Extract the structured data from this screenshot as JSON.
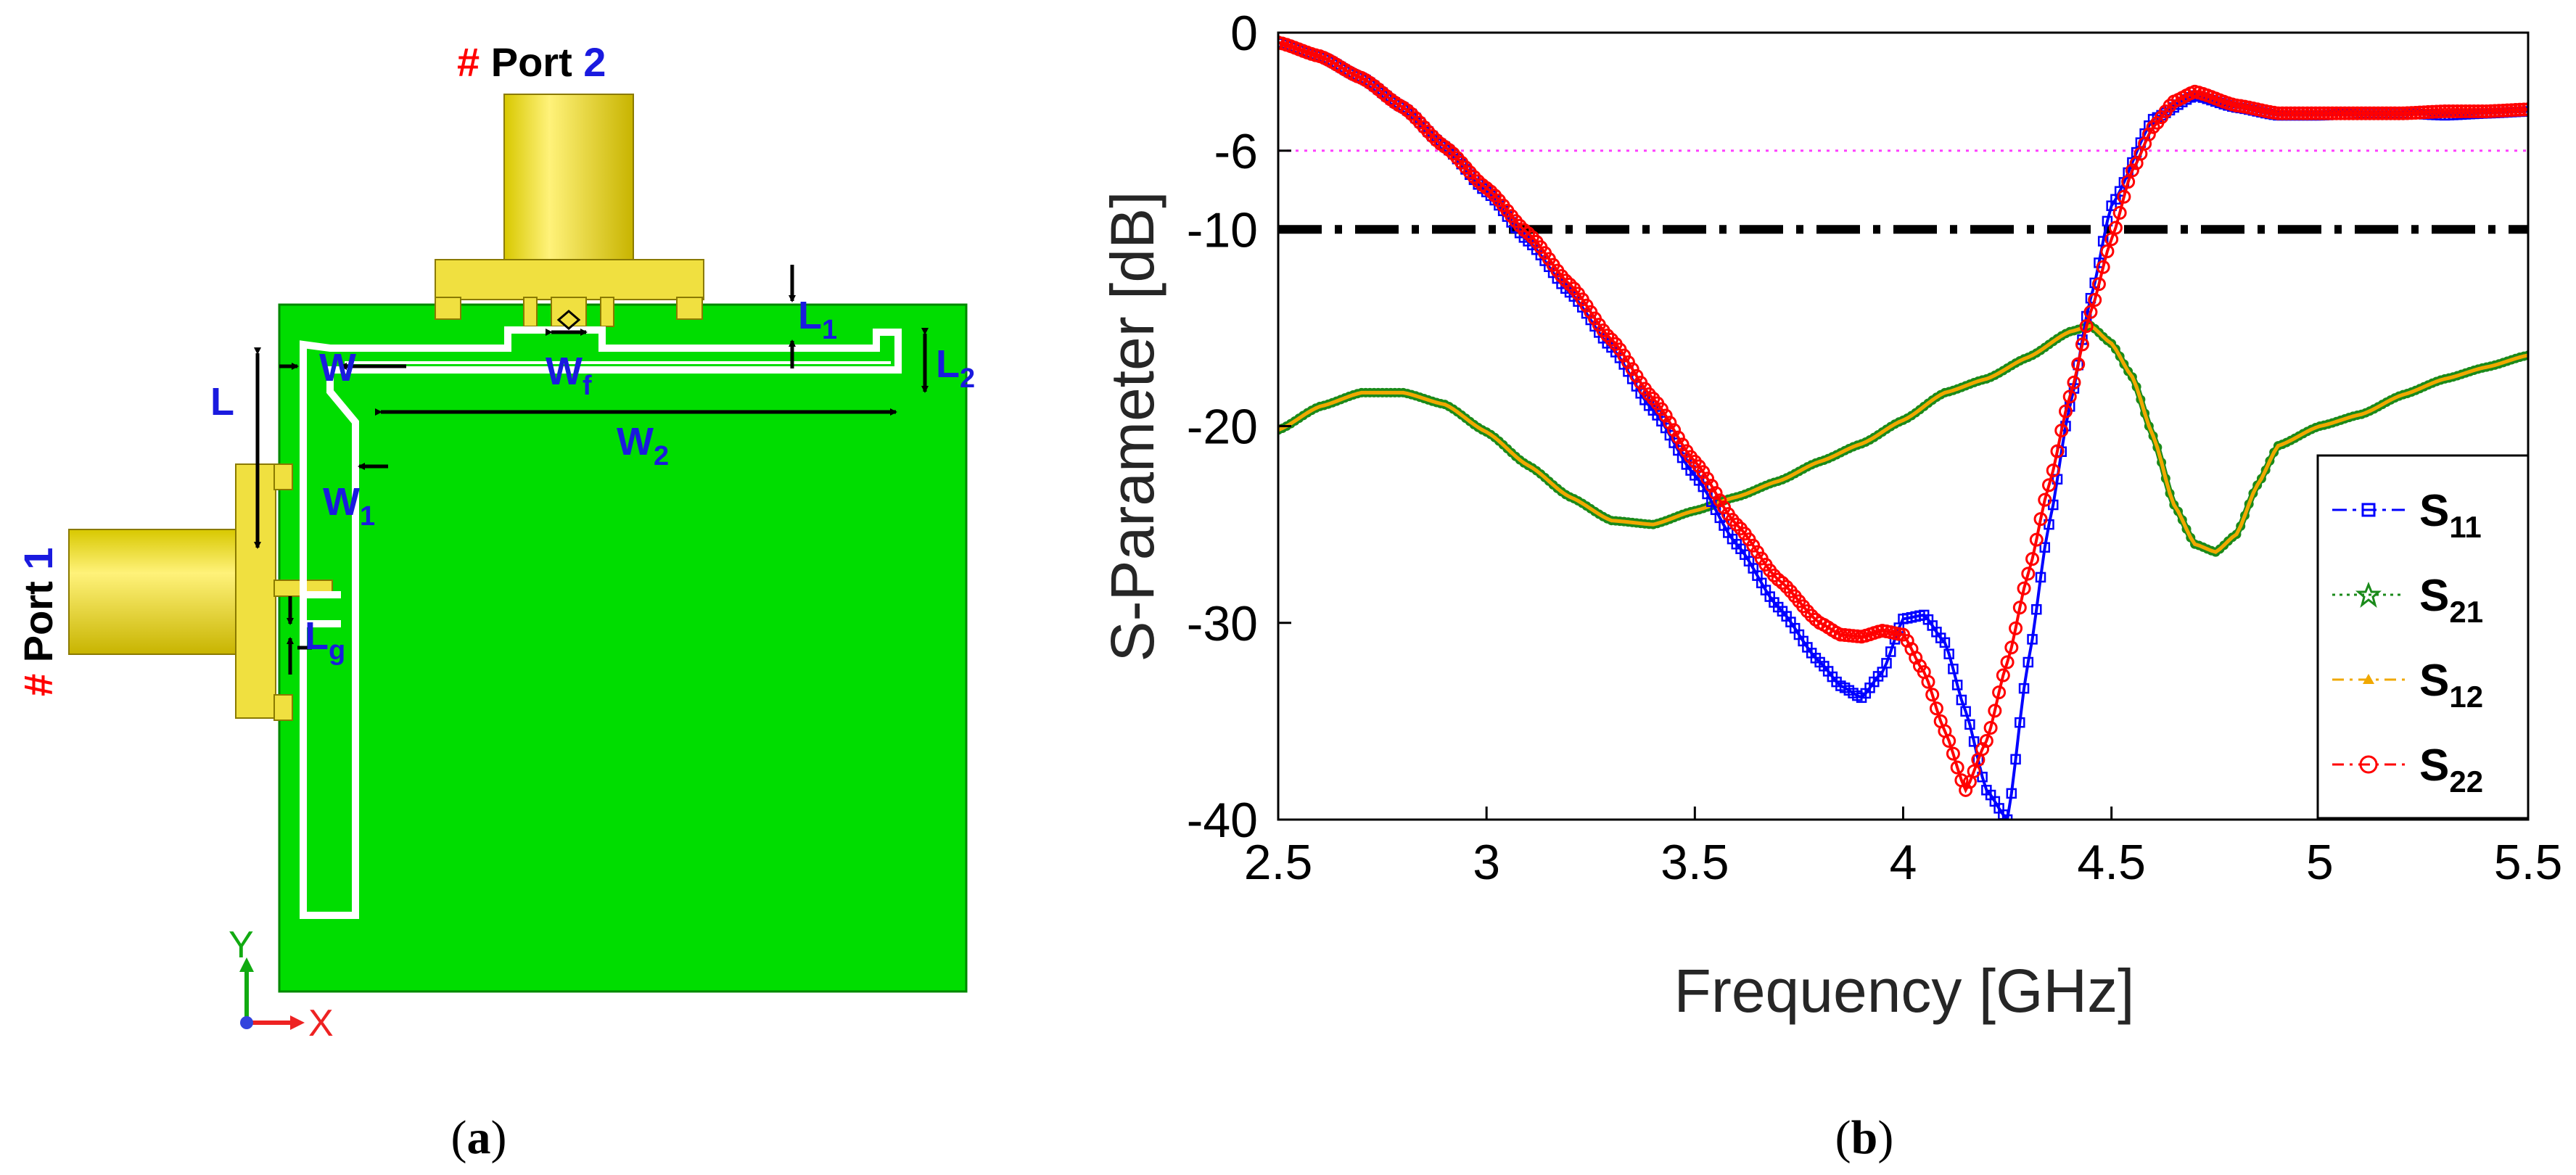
{
  "figure": {
    "panel_a": {
      "caption_open": "(",
      "caption_letter": "a",
      "caption_close": ")",
      "port2": {
        "hash": "#",
        "word": "Port",
        "num": "2"
      },
      "port1": {
        "hash": "#",
        "word": "Port",
        "num": "1"
      },
      "dimensions": {
        "L": "L",
        "W": "W",
        "Wf": {
          "base": "W",
          "sub": "f"
        },
        "L1": {
          "base": "L",
          "sub": "1"
        },
        "L2": {
          "base": "L",
          "sub": "2"
        },
        "W2": {
          "base": "W",
          "sub": "2"
        },
        "W1": {
          "base": "W",
          "sub": "1"
        },
        "Lg": {
          "base": "L",
          "sub": "g"
        }
      },
      "axes": {
        "y": "Y",
        "x": "X"
      },
      "colors": {
        "substrate": "#00dd00",
        "connector": "#f0e040",
        "slot": "#ffffff",
        "dimension_text": "#1a1adf",
        "hash_red": "#ff0000"
      }
    },
    "panel_b": {
      "caption_open": "(",
      "caption_letter": "b",
      "caption_close": ")"
    }
  },
  "chart_data": {
    "type": "line",
    "xlabel": "Frequency [GHz]",
    "ylabel": "S-Parameter [dB]",
    "xlim": [
      2.5,
      5.5
    ],
    "ylim": [
      -40,
      0
    ],
    "xticks": [
      2.5,
      3,
      3.5,
      4,
      4.5,
      5,
      5.5
    ],
    "xtick_labels": [
      "2.5",
      "3",
      "3.5",
      "4",
      "4.5",
      "5",
      "5.5"
    ],
    "yticks": [
      0,
      -6,
      -10,
      -20,
      -30,
      -40
    ],
    "ytick_labels": [
      "0",
      "-6",
      "-10",
      "-20",
      "-30",
      "-40"
    ],
    "reference_lines": [
      {
        "y": -6,
        "style": "dotted",
        "color": "#ff40ff"
      },
      {
        "y": -10,
        "style": "dash-dot",
        "color": "#000000"
      }
    ],
    "legend_position": "bottom-right",
    "series": [
      {
        "name": "S",
        "sub": "11",
        "color": "#0000ff",
        "marker": "square",
        "x": [
          2.5,
          2.6,
          2.7,
          2.8,
          2.9,
          3.0,
          3.1,
          3.2,
          3.3,
          3.4,
          3.5,
          3.6,
          3.7,
          3.8,
          3.85,
          3.9,
          3.95,
          4.0,
          4.05,
          4.1,
          4.15,
          4.2,
          4.25,
          4.3,
          4.35,
          4.4,
          4.45,
          4.5,
          4.6,
          4.7,
          4.8,
          4.9,
          5.0,
          5.1,
          5.2,
          5.3,
          5.4,
          5.5
        ],
        "values": [
          -0.5,
          -1.2,
          -2.3,
          -3.8,
          -5.8,
          -8.1,
          -10.6,
          -13.2,
          -16.0,
          -19.2,
          -22.5,
          -26.0,
          -29.2,
          -32.0,
          -33.2,
          -33.8,
          -32.5,
          -29.8,
          -29.6,
          -31.0,
          -34.5,
          -38.5,
          -40.0,
          -32.0,
          -25.0,
          -19.0,
          -13.5,
          -8.8,
          -4.4,
          -3.2,
          -3.8,
          -4.2,
          -4.2,
          -4.1,
          -4.1,
          -4.2,
          -4.1,
          -4.0
        ]
      },
      {
        "name": "S",
        "sub": "21",
        "color": "#1a8a1a",
        "marker": "star",
        "x": [
          2.5,
          2.6,
          2.7,
          2.8,
          2.9,
          3.0,
          3.1,
          3.2,
          3.3,
          3.4,
          3.5,
          3.6,
          3.7,
          3.8,
          3.9,
          4.0,
          4.1,
          4.2,
          4.3,
          4.4,
          4.45,
          4.5,
          4.55,
          4.6,
          4.65,
          4.7,
          4.75,
          4.8,
          4.85,
          4.9,
          5.0,
          5.1,
          5.2,
          5.3,
          5.4,
          5.5
        ],
        "values": [
          -20.2,
          -19.0,
          -18.3,
          -18.3,
          -18.9,
          -20.3,
          -22.0,
          -23.6,
          -24.8,
          -25.0,
          -24.3,
          -23.6,
          -22.8,
          -21.8,
          -20.9,
          -19.7,
          -18.3,
          -17.6,
          -16.5,
          -15.2,
          -14.9,
          -15.8,
          -17.5,
          -20.5,
          -24.0,
          -26.0,
          -26.4,
          -25.5,
          -23.0,
          -21.0,
          -20.0,
          -19.4,
          -18.4,
          -17.6,
          -17.0,
          -16.4
        ]
      },
      {
        "name": "S",
        "sub": "12",
        "color": "#f0a800",
        "marker": "triangle",
        "x": [
          2.5,
          2.6,
          2.7,
          2.8,
          2.9,
          3.0,
          3.1,
          3.2,
          3.3,
          3.4,
          3.5,
          3.6,
          3.7,
          3.8,
          3.9,
          4.0,
          4.1,
          4.2,
          4.3,
          4.4,
          4.45,
          4.5,
          4.55,
          4.6,
          4.65,
          4.7,
          4.75,
          4.8,
          4.85,
          4.9,
          5.0,
          5.1,
          5.2,
          5.3,
          5.4,
          5.5
        ],
        "values": [
          -20.2,
          -19.0,
          -18.3,
          -18.3,
          -18.9,
          -20.3,
          -22.0,
          -23.6,
          -24.8,
          -25.0,
          -24.3,
          -23.6,
          -22.8,
          -21.8,
          -20.9,
          -19.7,
          -18.3,
          -17.6,
          -16.5,
          -15.2,
          -14.9,
          -15.8,
          -17.5,
          -20.5,
          -24.0,
          -26.0,
          -26.4,
          -25.5,
          -23.0,
          -21.0,
          -20.0,
          -19.4,
          -18.4,
          -17.6,
          -17.0,
          -16.4
        ]
      },
      {
        "name": "S",
        "sub": "22",
        "color": "#ff0000",
        "marker": "circle",
        "x": [
          2.5,
          2.6,
          2.7,
          2.8,
          2.9,
          3.0,
          3.1,
          3.2,
          3.3,
          3.4,
          3.5,
          3.6,
          3.7,
          3.8,
          3.85,
          3.9,
          3.95,
          4.0,
          4.05,
          4.1,
          4.15,
          4.2,
          4.25,
          4.3,
          4.35,
          4.4,
          4.45,
          4.5,
          4.55,
          4.6,
          4.65,
          4.7,
          4.8,
          4.9,
          5.0,
          5.1,
          5.2,
          5.3,
          5.4,
          5.5
        ],
        "values": [
          -0.5,
          -1.2,
          -2.3,
          -3.8,
          -5.8,
          -7.9,
          -10.2,
          -12.8,
          -15.6,
          -18.6,
          -21.8,
          -25.0,
          -27.8,
          -30.0,
          -30.6,
          -30.7,
          -30.4,
          -30.6,
          -32.5,
          -35.5,
          -38.5,
          -36.0,
          -32.0,
          -27.5,
          -23.0,
          -18.5,
          -14.2,
          -10.5,
          -7.0,
          -4.8,
          -3.5,
          -3.0,
          -3.7,
          -4.1,
          -4.1,
          -4.1,
          -4.1,
          -4.0,
          -4.0,
          -3.9
        ]
      }
    ]
  }
}
